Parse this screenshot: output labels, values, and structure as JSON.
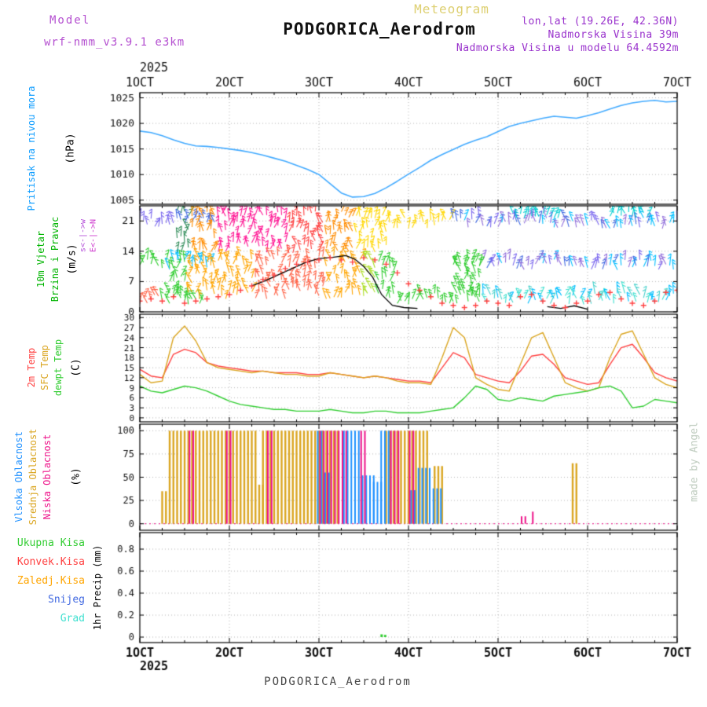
{
  "texts": {
    "watermark": "Meteogram",
    "station_title": "PODGORICA_Aerodrom",
    "model_label": "Model",
    "model_name": "wrf-nmm_v3.9.1 e3km",
    "lonlat": "lon,lat (19.26E, 42.36N)",
    "elevation": "Nadmorska Visina 39m",
    "model_elevation": "Nadmorska Visina u modelu 64.4592m",
    "footer_station": "PODGORICA_Aerodrom",
    "credit": "made by Angel"
  },
  "colors": {
    "model_text": "#b44fd0",
    "meta_text": "#9932cc",
    "watermark": "#ddcf70",
    "title": "#111111",
    "footer": "#474747",
    "credit": "#bfccbf"
  },
  "x_axis": {
    "year": "2025",
    "tick_labels": [
      "1OCT",
      "2OCT",
      "3OCT",
      "4OCT",
      "5OCT",
      "6OCT",
      "7OCT"
    ],
    "tick_values": [
      1,
      2,
      3,
      4,
      5,
      6,
      7
    ]
  },
  "side_labels": {
    "pressure_name": {
      "text": "Pritisak na nivou mora",
      "color": "#0a9bff"
    },
    "pressure_unit": {
      "text": "(hPa)",
      "color": "#000000"
    },
    "wind_name1": {
      "text": "10m Vjetar",
      "color": "#00b400"
    },
    "wind_name2": {
      "text": "Brzina i Pravac",
      "color": "#00b400"
    },
    "wind_unit": {
      "text": "(m/s)",
      "color": "#000000"
    },
    "wind_dir1": {
      "text": "s<-|->w",
      "color": "#b24bd8"
    },
    "wind_dir2": {
      "text": "E<-|->N",
      "color": "#cc33cc"
    },
    "temp_2m": {
      "text": "2m Temp",
      "color": "#ff4040"
    },
    "temp_sfc": {
      "text": "SFC Temp",
      "color": "#daa520"
    },
    "temp_dew": {
      "text": "dewpt Temp",
      "color": "#32cd32"
    },
    "temp_unit": {
      "text": "(C)",
      "color": "#000000"
    },
    "cloud_high": {
      "text": "Vlsoka Oblacnost",
      "color": "#1e90ff"
    },
    "cloud_mid": {
      "text": "Srednja Oblacnost",
      "color": "#daa520"
    },
    "cloud_low": {
      "text": "Niska Oblacnost",
      "color": "#ee1289"
    },
    "cloud_unit": {
      "text": "(%)",
      "color": "#000000"
    },
    "precip_total": {
      "text": "Ukupna Kisa",
      "color": "#32cd32"
    },
    "precip_conv": {
      "text": "Konvek.Kisa",
      "color": "#ff4040"
    },
    "precip_frz": {
      "text": "Zaledj.Kisa",
      "color": "#ffa500"
    },
    "precip_snow": {
      "text": "Snijeg",
      "color": "#4169e1"
    },
    "precip_hail": {
      "text": "Grad",
      "color": "#40e0d0"
    },
    "precip_unit": {
      "text": "1hr Precip (mm)",
      "color": "#000000"
    }
  },
  "chart_data": [
    {
      "id": "pressure",
      "type": "line",
      "ylabel": "Pritisak na nivou mora (hPa)",
      "ylim": [
        1004.2,
        1026
      ],
      "yticks": [
        1005,
        1010,
        1015,
        1020,
        1025
      ],
      "x_start": 1,
      "x_step": 0.125,
      "series": [
        {
          "name": "Pritisak na nivou mora",
          "color": "#42aaff",
          "values": [
            1018.5,
            1018.2,
            1017.6,
            1016.8,
            1016.1,
            1015.6,
            1015.5,
            1015.3,
            1015.0,
            1014.7,
            1014.3,
            1013.8,
            1013.2,
            1012.6,
            1011.8,
            1011.0,
            1010.0,
            1008.2,
            1006.4,
            1005.6,
            1005.7,
            1006.3,
            1007.4,
            1008.7,
            1010.1,
            1011.4,
            1012.8,
            1013.9,
            1014.9,
            1015.9,
            1016.7,
            1017.4,
            1018.4,
            1019.4,
            1020.0,
            1020.5,
            1021.0,
            1021.4,
            1021.2,
            1021.0,
            1021.5,
            1022.1,
            1022.8,
            1023.5,
            1024.0,
            1024.3,
            1024.5,
            1024.2,
            1024.3
          ]
        }
      ]
    },
    {
      "id": "wind",
      "type": "wind-barbs",
      "ylabel": "10m Vjetar Brzina i Pravac (m/s)",
      "ylim": [
        0,
        24.5
      ],
      "yticks": [
        0,
        7,
        14,
        21
      ],
      "x_start": 1,
      "x_step": 0.125,
      "series": [
        {
          "name": "10m wind speed",
          "marker": "plus",
          "color": "#ff4040",
          "values": [
            2.5,
            3,
            2.5,
            3.5,
            2,
            2.5,
            3,
            3.5,
            4,
            5,
            6,
            7.5,
            8.5,
            10,
            11,
            11.5,
            12,
            12.5,
            12,
            11.5,
            12.5,
            12,
            11,
            9,
            6.5,
            5,
            3.5,
            2,
            1.5,
            1,
            1.5,
            2.5,
            2,
            1.5,
            3.5,
            4,
            2.5,
            1.5,
            1,
            2,
            2.5,
            4,
            4.5,
            3,
            2,
            1.5,
            2.5,
            4.5,
            5
          ]
        }
      ],
      "black_segments": [
        [
          [
            2.25,
            6
          ],
          [
            2.4,
            7.2
          ],
          [
            2.55,
            8.6
          ],
          [
            2.7,
            10
          ],
          [
            2.85,
            11.4
          ],
          [
            3.0,
            12.3
          ],
          [
            3.15,
            12.6
          ],
          [
            3.3,
            13
          ],
          [
            3.4,
            12.2
          ],
          [
            3.5,
            10.5
          ],
          [
            3.6,
            8
          ],
          [
            3.7,
            4
          ],
          [
            3.82,
            1.5
          ],
          [
            3.95,
            1
          ],
          [
            4.1,
            0.8
          ]
        ],
        [
          [
            5.55,
            1.2
          ],
          [
            5.7,
            0.8
          ],
          [
            5.85,
            1.4
          ],
          [
            6.0,
            0.6
          ]
        ]
      ],
      "barbs": {
        "fans": [
          {
            "hours": [
              10,
              66
            ],
            "levels": [
              15,
              18.5,
              22
            ],
            "palette": [
              [
                10,
                14,
                "#2e8b57"
              ],
              [
                14,
                21,
                "#ff8c00"
              ],
              [
                21,
                40,
                "#ff1493"
              ],
              [
                40,
                50,
                "#ff4040"
              ],
              [
                50,
                58,
                "#ff8c00"
              ],
              [
                58,
                67,
                "#ffd700"
              ]
            ]
          },
          {
            "hours": [
              8,
              68
            ],
            "levels": [
              4.5,
              8,
              11.5
            ],
            "palette": [
              [
                8,
                13,
                "#32cd32"
              ],
              [
                13,
                31,
                "#ffa500"
              ],
              [
                31,
                50,
                "#ff6347"
              ],
              [
                50,
                60,
                "#ffa500"
              ],
              [
                60,
                64,
                "#aadd22"
              ],
              [
                64,
                69,
                "#32cd32"
              ]
            ]
          },
          {
            "hours": [
              85,
              91
            ],
            "levels": [
              4,
              7,
              10
            ],
            "palette": [
              [
                85,
                92,
                "#32cd32"
              ]
            ]
          }
        ],
        "rows": [
          {
            "level": 20.5,
            "palette": [
              [
                0,
                10,
                "#7b68ee"
              ],
              [
                10,
                21,
                "#4169e1"
              ],
              [
                67,
                84,
                "#ffd700"
              ],
              [
                84,
                145,
                "mix:#4169e1,#9370db,#00bfff,#7b68ee"
              ]
            ]
          },
          {
            "level": 11,
            "palette": [
              [
                0,
                8,
                "#32cd32"
              ],
              [
                8,
                20,
                "#00bfff"
              ],
              [
                84,
                92,
                "#32cd32"
              ],
              [
                92,
                145,
                "mix:#4169e1,#9370db,#00bfff,#7b68ee"
              ]
            ]
          },
          {
            "level": 3,
            "palette": [
              [
                0,
                6,
                "#ff6347"
              ],
              [
                6,
                18,
                "#32cd32"
              ],
              [
                69,
                92,
                "#32cd32"
              ],
              [
                92,
                145,
                "mix:#40e0d0,#00bfff,#48d1cc"
              ]
            ]
          }
        ],
        "spikes": [
          {
            "hours": [
              100,
              112
            ],
            "level": 22.3,
            "color": "#00ced1"
          },
          {
            "hours": [
              126,
              136
            ],
            "level": 22.3,
            "color": "#00ced1"
          }
        ]
      }
    },
    {
      "id": "temp",
      "type": "line",
      "ylabel": "2m Temp / SFC Temp / dewpt Temp (C)",
      "ylim": [
        -1.2,
        31
      ],
      "yticks": [
        0,
        3,
        6,
        9,
        12,
        15,
        18,
        21,
        24,
        27,
        30
      ],
      "x_start": 1,
      "x_step": 0.125,
      "series": [
        {
          "name": "2m Temp",
          "color": "#ff4040",
          "values": [
            14.5,
            12.5,
            12.0,
            19.0,
            20.5,
            19.5,
            16.5,
            15.5,
            15.0,
            14.5,
            14.0,
            14.0,
            13.5,
            13.5,
            13.5,
            13.0,
            13.0,
            13.5,
            13.0,
            12.5,
            12.0,
            12.5,
            12.0,
            11.5,
            11.0,
            11.0,
            10.5,
            15.0,
            19.5,
            18.0,
            13.0,
            12.0,
            11.0,
            10.5,
            14.0,
            18.5,
            19.0,
            16.0,
            12.0,
            11.0,
            10.0,
            10.5,
            16.0,
            21.0,
            22.0,
            18.0,
            13.5,
            12.0,
            11.0
          ]
        },
        {
          "name": "SFC Temp",
          "color": "#daa520",
          "values": [
            13.0,
            10.5,
            11.0,
            24.0,
            27.5,
            23.0,
            16.5,
            15.0,
            14.5,
            14.0,
            13.5,
            14.0,
            13.5,
            13.0,
            13.0,
            12.5,
            12.5,
            13.5,
            13.0,
            12.5,
            12.0,
            12.5,
            12.0,
            11.0,
            10.5,
            10.5,
            10.0,
            18.0,
            27.0,
            24.0,
            12.0,
            10.0,
            8.5,
            8.0,
            16.0,
            24.0,
            25.5,
            18.0,
            10.5,
            9.0,
            8.0,
            9.0,
            18.0,
            25.0,
            26.0,
            19.0,
            12.0,
            10.0,
            9.0
          ]
        },
        {
          "name": "dewpt Temp",
          "color": "#32cd32",
          "values": [
            9.5,
            8.0,
            7.5,
            8.5,
            9.5,
            9.0,
            8.0,
            6.5,
            5.0,
            4.0,
            3.5,
            3.0,
            2.5,
            2.5,
            2.0,
            2.0,
            2.0,
            2.5,
            2.0,
            1.5,
            1.5,
            2.0,
            2.0,
            1.5,
            1.5,
            1.5,
            2.0,
            2.5,
            3.0,
            6.0,
            9.5,
            8.5,
            5.5,
            5.0,
            6.0,
            5.5,
            5.0,
            6.5,
            7.0,
            7.5,
            8.0,
            9.0,
            9.5,
            8.0,
            3.0,
            3.5,
            5.5,
            5.0,
            4.5
          ]
        }
      ]
    },
    {
      "id": "cloud",
      "type": "bar",
      "ylabel": "Oblacnost (%)",
      "ylim": [
        -7,
        107
      ],
      "yticks": [
        0,
        25,
        50,
        75,
        100
      ],
      "series": [
        {
          "key": "visoka",
          "name": "Vlsoka Oblacnost",
          "color": "#1e90ff",
          "intervals": [
            [
              3.0,
              3.06,
              100
            ],
            [
              3.08,
              3.12,
              55
            ],
            [
              3.3,
              3.46,
              100
            ],
            [
              3.5,
              3.62,
              52
            ],
            [
              3.62,
              3.72,
              45
            ],
            [
              3.72,
              3.8,
              100
            ],
            [
              4.04,
              4.1,
              36
            ],
            [
              4.14,
              4.26,
              60
            ],
            [
              4.3,
              4.36,
              38
            ]
          ]
        },
        {
          "key": "srednja",
          "name": "Srednja Oblacnost",
          "color": "#daa520",
          "intervals": [
            [
              1.25,
              1.29,
              35
            ],
            [
              1.33,
              2.28,
              100
            ],
            [
              2.33,
              2.37,
              42
            ],
            [
              2.39,
              3.02,
              100
            ],
            [
              3.06,
              3.2,
              100
            ],
            [
              3.76,
              3.82,
              100
            ],
            [
              3.86,
              4.2,
              100
            ],
            [
              4.28,
              4.38,
              62
            ],
            [
              5.82,
              5.86,
              65
            ]
          ]
        },
        {
          "key": "niska",
          "name": "Niska Oblacnost",
          "color": "#ee1289",
          "intervals": [
            [
              1.54,
              1.58,
              100
            ],
            [
              1.96,
              2.0,
              100
            ],
            [
              2.42,
              2.46,
              100
            ],
            [
              2.98,
              3.3,
              100
            ],
            [
              3.44,
              3.5,
              100
            ],
            [
              3.8,
              3.86,
              100
            ],
            [
              3.98,
              4.04,
              100
            ],
            [
              5.27,
              5.3,
              8
            ],
            [
              5.36,
              5.39,
              13
            ]
          ]
        }
      ]
    },
    {
      "id": "precip",
      "type": "bar",
      "ylabel": "1hr Precip (mm)",
      "ylim": [
        -0.05,
        0.95
      ],
      "yticks": [
        0,
        0.2,
        0.4,
        0.6,
        0.8
      ],
      "series": [
        {
          "name": "Ukupna Kisa",
          "color": "#32cd32",
          "bars": [
            [
              3.7,
              0.025
            ],
            [
              3.74,
              0.02
            ]
          ]
        },
        {
          "name": "Konvek.Kisa",
          "color": "#ff4040",
          "bars": []
        },
        {
          "name": "Zaledj.Kisa",
          "color": "#ffa500",
          "bars": []
        },
        {
          "name": "Snijeg",
          "color": "#4169e1",
          "bars": []
        },
        {
          "name": "Grad",
          "color": "#40e0d0",
          "bars": []
        }
      ]
    }
  ]
}
